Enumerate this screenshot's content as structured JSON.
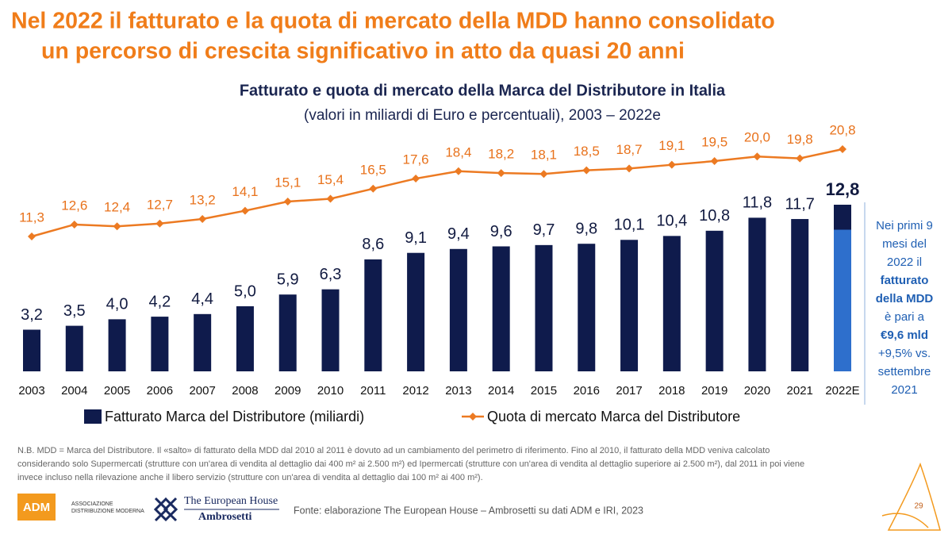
{
  "header": {
    "title_lines": [
      "Nel 2022 il fatturato e la quota di mercato della MDD hanno consolidato",
      "un percorso di crescita significativo in atto da quasi 20 anni"
    ]
  },
  "chart_data": {
    "type": "combo",
    "title": "Fatturato e quota di mercato della Marca del Distributore in Italia",
    "subtitle": "(valori in miliardi di Euro e percentuali), 2003 – 2022e",
    "categories": [
      "2003",
      "2004",
      "2005",
      "2006",
      "2007",
      "2008",
      "2009",
      "2010",
      "2011",
      "2012",
      "2013",
      "2014",
      "2015",
      "2016",
      "2017",
      "2018",
      "2019",
      "2020",
      "2021",
      "2022E"
    ],
    "highlight_last": true,
    "series": [
      {
        "name": "Fatturato Marca del Distributore (miliardi)",
        "type": "bar",
        "color": "#0f1b4c",
        "highlight_color": "#2e6fcc",
        "values": [
          3.2,
          3.5,
          4.0,
          4.2,
          4.4,
          5.0,
          5.9,
          6.3,
          8.6,
          9.1,
          9.4,
          9.6,
          9.7,
          9.8,
          10.1,
          10.4,
          10.8,
          11.8,
          11.7,
          12.8
        ],
        "value_labels": [
          "3,2",
          "3,5",
          "4,0",
          "4,2",
          "4,4",
          "5,0",
          "5,9",
          "6,3",
          "8,6",
          "9,1",
          "9,4",
          "9,6",
          "9,7",
          "9,8",
          "10,1",
          "10,4",
          "10,8",
          "11,8",
          "11,7",
          "12,8"
        ]
      },
      {
        "name": "Quota di mercato Marca del Distributore",
        "type": "line",
        "color": "#ec7a22",
        "values": [
          11.3,
          12.6,
          12.4,
          12.7,
          13.2,
          14.1,
          15.1,
          15.4,
          16.5,
          17.6,
          18.4,
          18.2,
          18.1,
          18.5,
          18.7,
          19.1,
          19.5,
          20.0,
          19.8,
          20.8
        ],
        "value_labels": [
          "11,3",
          "12,6",
          "12,4",
          "12,7",
          "13,2",
          "14,1",
          "15,1",
          "15,4",
          "16,5",
          "17,6",
          "18,4",
          "18,2",
          "18,1",
          "18,5",
          "18,7",
          "19,1",
          "19,5",
          "20,0",
          "19,8",
          "20,8"
        ]
      }
    ],
    "annotation": {
      "lines": [
        {
          "text": "Nei primi 9",
          "bold": false
        },
        {
          "text": "mesi del",
          "bold": false
        },
        {
          "text": "2022 il",
          "bold": false
        },
        {
          "text": "fatturato",
          "bold": true
        },
        {
          "text": "della MDD",
          "bold": true
        },
        {
          "text": "è pari a",
          "bold": false
        },
        {
          "text": "€9,6 mld",
          "bold": true
        },
        {
          "text": "+9,5% vs.",
          "bold": false
        },
        {
          "text": "settembre",
          "bold": false
        },
        {
          "text": "2021",
          "bold": false
        }
      ]
    }
  },
  "note": [
    "N.B. MDD = Marca del Distributore. Il «salto» di fatturato della MDD dal 2010 al 2011 è dovuto ad un cambiamento del perimetro di riferimento. Fino al 2010, il fatturato della MDD veniva calcolato",
    "considerando solo Supermercati (strutture con un'area di vendita al dettaglio dai 400 m² ai 2.500 m²) ed Ipermercati (strutture con un'area di vendita al dettaglio superiore ai 2.500 m²), dal 2011 in poi viene",
    "invece incluso nella rilevazione anche il libero servizio (strutture con un'area di vendita al dettaglio dai 100 m² ai 400 m²)."
  ],
  "footer": {
    "adm": {
      "logo": "ADM",
      "line1": "ASSOCIAZIONE",
      "line2": "DISTRIBUZIONE MODERNA"
    },
    "teha": {
      "line1": "The European House",
      "line2": "Ambrosetti"
    },
    "source": "Fonte: elaborazione The European House – Ambrosetti su dati ADM e IRI, 2023",
    "page": "29"
  }
}
